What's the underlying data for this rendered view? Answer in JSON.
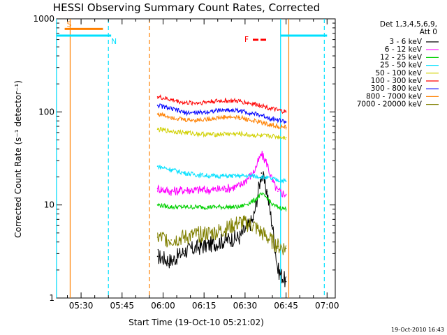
{
  "chart_data": {
    "type": "line",
    "title": "HESSI Observing Summary Count Rates, Corrected",
    "xlabel": "Start Time (19-Oct-10 05:21:02)",
    "ylabel": "Corrected Count Rate (s⁻¹ detector⁻¹)",
    "y_scale": "log",
    "ylim": [
      1,
      1000
    ],
    "xlim": [
      "05:21:02",
      "07:03:00"
    ],
    "x_ticks": [
      "05:30",
      "05:45",
      "06:00",
      "06:15",
      "06:30",
      "06:45",
      "07:00"
    ],
    "y_ticks": [
      "1",
      "10",
      "100",
      "1000"
    ],
    "grid": false,
    "legend_position": "right",
    "legend_header": [
      "Det 1,3,4,5,6,9,",
      "Att 0"
    ],
    "stamp": "19-Oct-2010 16:43",
    "flags": [
      {
        "label": "S",
        "color": "#ff8000",
        "x_start": "05:24",
        "x_end": "05:38",
        "level": 780
      },
      {
        "label": "N",
        "color": "#00e0ff",
        "x_start": "05:21",
        "x_end": "05:41",
        "level": 660
      },
      {
        "label": "F",
        "color": "#ff0000"
      }
    ],
    "night_segments": [
      {
        "x_start": "06:43",
        "x_end": "07:00",
        "level": 660
      }
    ],
    "vertical_markers": [
      {
        "x": "05:21",
        "color": "#00e0ff",
        "style": "solid"
      },
      {
        "x": "05:26",
        "color": "#ff8000",
        "style": "solid"
      },
      {
        "x": "05:40",
        "color": "#00e0ff",
        "style": "dashed"
      },
      {
        "x": "05:55",
        "color": "#ff8000",
        "style": "dashed"
      },
      {
        "x": "06:43",
        "color": "#00e0ff",
        "style": "solid"
      },
      {
        "x": "06:46",
        "color": "#ff8000",
        "style": "solid"
      },
      {
        "x": "06:59",
        "color": "#00e0ff",
        "style": "dashed"
      }
    ],
    "x": [
      "05:58",
      "06:03",
      "06:08",
      "06:13",
      "06:18",
      "06:23",
      "06:28",
      "06:33",
      "06:36",
      "06:38",
      "06:40",
      "06:42",
      "06:45"
    ],
    "series": [
      {
        "name": "3 - 6 keV",
        "color": "#000000",
        "values": [
          2.8,
          2.5,
          3.2,
          3.5,
          3.8,
          4.2,
          4.5,
          7.0,
          22,
          14,
          6.0,
          2.0,
          1.5
        ]
      },
      {
        "name": "6 - 12 keV",
        "color": "#ff00ff",
        "values": [
          15,
          14,
          14.5,
          14.5,
          14.5,
          15,
          16,
          22,
          35,
          28,
          18,
          14,
          13
        ]
      },
      {
        "name": "12 - 25 keV",
        "color": "#00d000",
        "values": [
          10,
          9.5,
          9.5,
          9.5,
          9.5,
          9.5,
          9.5,
          11,
          13,
          12,
          10,
          9.5,
          9
        ]
      },
      {
        "name": "25 - 50 keV",
        "color": "#00e0ff",
        "values": [
          26,
          24,
          22,
          21,
          20.5,
          20.5,
          20.5,
          20.5,
          20,
          19.5,
          19,
          18.5,
          18
        ]
      },
      {
        "name": "50 - 100 keV",
        "color": "#d0d000",
        "values": [
          65,
          62,
          60,
          58,
          57,
          58,
          58,
          56,
          55,
          55,
          55,
          54,
          53
        ]
      },
      {
        "name": "100 - 300 keV",
        "color": "#ff0000",
        "values": [
          145,
          135,
          125,
          125,
          130,
          132,
          130,
          122,
          118,
          112,
          108,
          104,
          100
        ]
      },
      {
        "name": "300 - 800 keV",
        "color": "#0000ff",
        "values": [
          118,
          108,
          98,
          98,
          102,
          105,
          103,
          96,
          92,
          88,
          84,
          82,
          78
        ]
      },
      {
        "name": "800 - 7000 keV",
        "color": "#ff8000",
        "values": [
          95,
          88,
          82,
          82,
          85,
          88,
          87,
          80,
          77,
          74,
          72,
          70,
          68
        ]
      },
      {
        "name": "7000 - 20000 keV",
        "color": "#808000",
        "values": [
          4.5,
          4.2,
          4.5,
          4.8,
          5.0,
          5.5,
          6.5,
          6.0,
          5.0,
          4.5,
          4.0,
          3.6,
          3.4
        ]
      }
    ]
  }
}
